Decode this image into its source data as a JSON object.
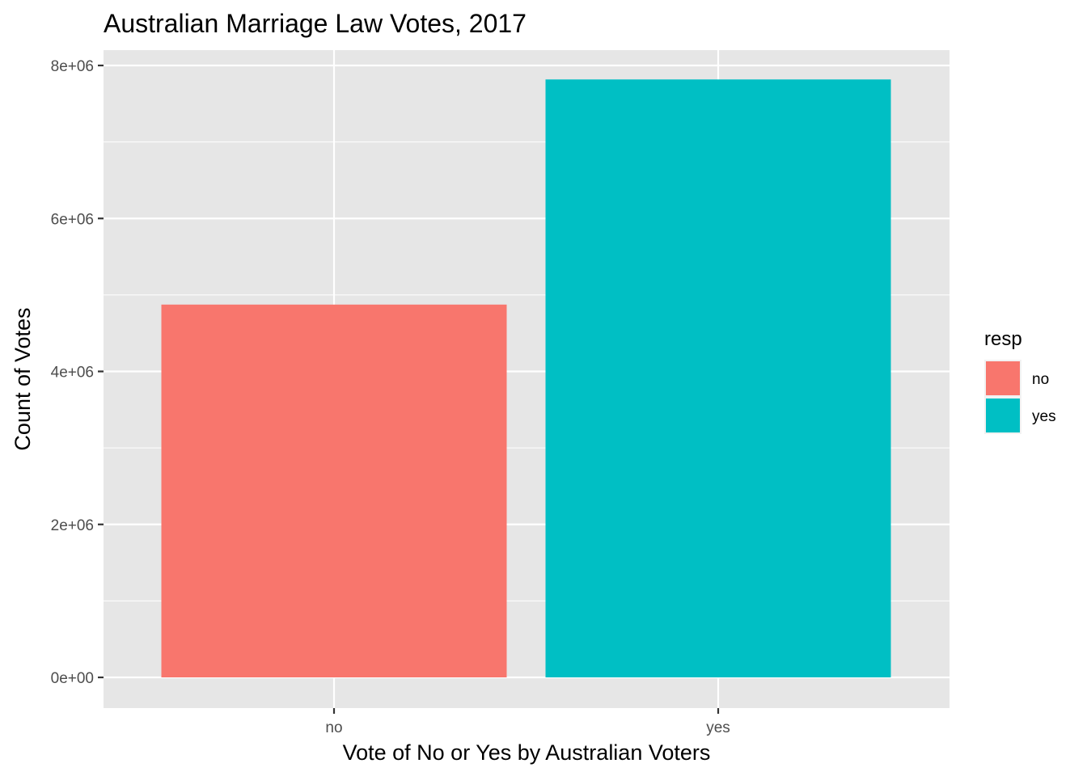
{
  "chart_data": {
    "type": "bar",
    "title": "Australian Marriage Law Votes, 2017",
    "xlabel": "Vote of No or Yes by Australian Voters",
    "ylabel": "Count of Votes",
    "categories": [
      "no",
      "yes"
    ],
    "values": [
      4873987,
      7817247
    ],
    "colors": [
      "#F8766D",
      "#00BFC4"
    ],
    "ylim": [
      0,
      8000000
    ],
    "y_ticks": [
      0,
      2000000,
      4000000,
      6000000,
      8000000
    ],
    "y_tick_labels": [
      "0e+00",
      "2e+06",
      "4e+06",
      "6e+06",
      "8e+06"
    ],
    "grid": true,
    "panel_background": "#EBEBEB",
    "legend": {
      "title": "resp",
      "position": "right",
      "entries": [
        {
          "label": "no",
          "color": "#F8766D"
        },
        {
          "label": "yes",
          "color": "#00BFC4"
        }
      ]
    }
  }
}
